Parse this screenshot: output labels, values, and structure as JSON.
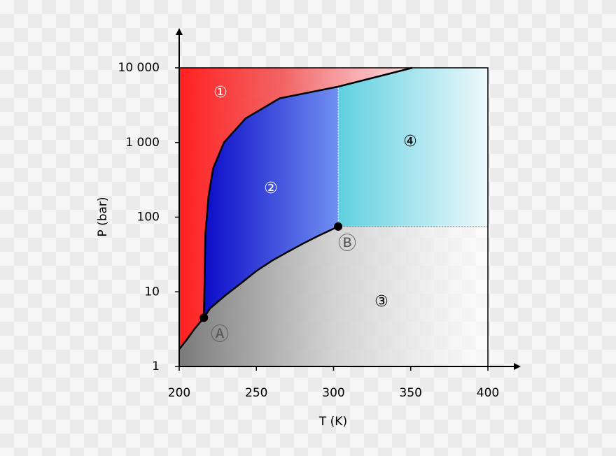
{
  "chart_data": {
    "type": "line",
    "xlabel": "T (K)",
    "ylabel": "P (bar)",
    "ylog": true,
    "xlim": [
      200,
      400
    ],
    "ylim": [
      1,
      10000
    ],
    "xticks": [
      200,
      250,
      300,
      350,
      400
    ],
    "yticks": [
      1,
      10,
      100,
      {
        "value": 1000,
        "label": "1 000"
      },
      {
        "value": 10000,
        "label": "10 000"
      }
    ],
    "series": [
      {
        "color": "#000000",
        "x": [
          200,
          205,
          210,
          216
        ],
        "values": [
          1.7,
          2.3,
          3.2,
          4.5
        ]
      },
      {
        "color": "#000000",
        "x": [
          216,
          220,
          230,
          240,
          250,
          260,
          270,
          280,
          290,
          303
        ],
        "values": [
          4.5,
          6,
          9,
          13,
          19,
          26,
          34,
          44,
          56,
          75
        ]
      },
      {
        "color": "#000000",
        "x": [
          216,
          217,
          219,
          222,
          229,
          243,
          265,
          303,
          351
        ],
        "values": [
          4.5,
          60,
          190,
          450,
          1000,
          2100,
          3900,
          5600,
          10000
        ]
      }
    ],
    "points": {
      "x": [
        216,
        303
      ],
      "values": [
        4.5,
        75
      ],
      "labels": [
        "Ⓐ",
        "Ⓑ"
      ],
      "color": "#000000"
    },
    "regions": [
      "①",
      "②",
      "③",
      "④"
    ]
  }
}
